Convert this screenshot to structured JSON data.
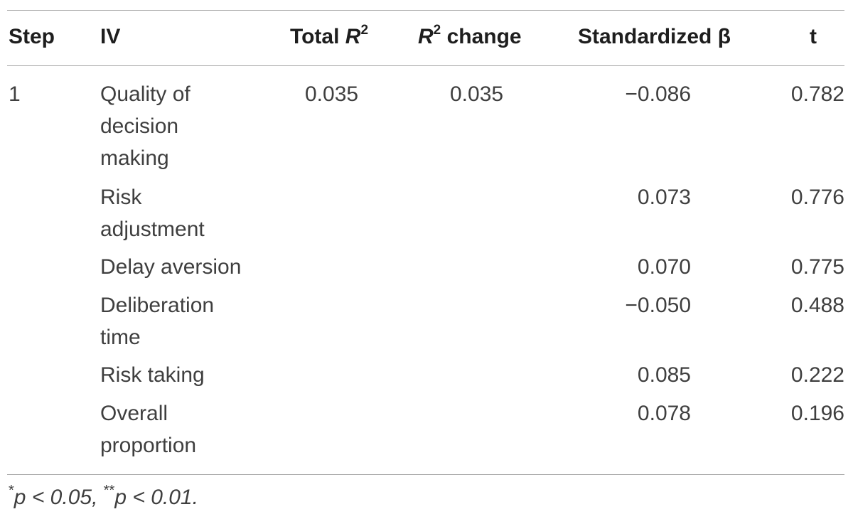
{
  "table": {
    "headers": {
      "step": "Step",
      "iv": "IV",
      "total_r2_prefix": "Total ",
      "r_symbol": "R",
      "squared": "2",
      "r2_change_suffix": " change",
      "std_beta": "Standardized β",
      "t": "t"
    },
    "step_value": "1",
    "total_r2": "0.035",
    "r2_change": "0.035",
    "rows": [
      {
        "iv_lines": [
          "Quality of",
          "decision",
          "making"
        ],
        "beta": "−0.086",
        "t": "0.782"
      },
      {
        "iv_lines": [
          "Risk",
          "adjustment"
        ],
        "beta": "0.073",
        "t": "0.776"
      },
      {
        "iv_lines": [
          "Delay aversion"
        ],
        "beta": "0.070",
        "t": "0.775"
      },
      {
        "iv_lines": [
          "Deliberation",
          "time"
        ],
        "beta": "−0.050",
        "t": "0.488"
      },
      {
        "iv_lines": [
          "Risk taking"
        ],
        "beta": "0.085",
        "t": "0.222"
      },
      {
        "iv_lines": [
          "Overall",
          "proportion"
        ],
        "beta": "0.078",
        "t": "0.196"
      }
    ]
  },
  "footnote": {
    "star1": "*",
    "p1": "p",
    "cond1": " < 0.05, ",
    "star2": "**",
    "p2": "p",
    "cond2": " < 0.01."
  }
}
